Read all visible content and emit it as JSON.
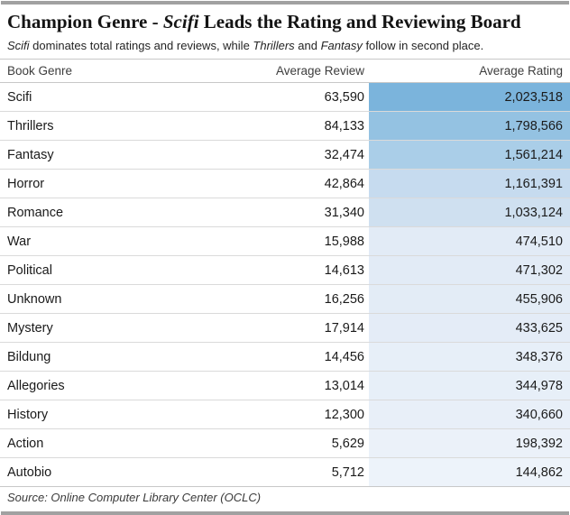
{
  "accent_bar_color": "#a1a1a1",
  "title": {
    "parts": [
      {
        "text": "Champion Genre - ",
        "italic": false
      },
      {
        "text": "Scifi",
        "italic": true
      },
      {
        "text": " Leads the Rating and Reviewing Board",
        "italic": false
      }
    ]
  },
  "subtitle": {
    "parts": [
      {
        "text": "Scifi",
        "italic": true
      },
      {
        "text": " dominates total ratings and reviews, while ",
        "italic": false
      },
      {
        "text": "Thrillers",
        "italic": true
      },
      {
        "text": " and ",
        "italic": false
      },
      {
        "text": "Fantasy",
        "italic": true
      },
      {
        "text": " follow in second place.",
        "italic": false
      }
    ]
  },
  "table": {
    "columns": [
      "Book Genre",
      "Average Review",
      "Average Rating"
    ],
    "rows": [
      {
        "genre": "Scifi",
        "avg_review": "63,590",
        "avg_rating": "2,023,518",
        "rating_bg": "#7bb4dc"
      },
      {
        "genre": "Thrillers",
        "avg_review": "84,133",
        "avg_rating": "1,798,566",
        "rating_bg": "#94c2e2"
      },
      {
        "genre": "Fantasy",
        "avg_review": "32,474",
        "avg_rating": "1,561,214",
        "rating_bg": "#aacee8"
      },
      {
        "genre": "Horror",
        "avg_review": "42,864",
        "avg_rating": "1,161,391",
        "rating_bg": "#c6dbef"
      },
      {
        "genre": "Romance",
        "avg_review": "31,340",
        "avg_rating": "1,033,124",
        "rating_bg": "#cfe0f0"
      },
      {
        "genre": "War",
        "avg_review": "15,988",
        "avg_rating": "474,510",
        "rating_bg": "#e2ebf6"
      },
      {
        "genre": "Political",
        "avg_review": "14,613",
        "avg_rating": "471,302",
        "rating_bg": "#e2ebf6"
      },
      {
        "genre": "Unknown",
        "avg_review": "16,256",
        "avg_rating": "455,906",
        "rating_bg": "#e3ecf6"
      },
      {
        "genre": "Mystery",
        "avg_review": "17,914",
        "avg_rating": "433,625",
        "rating_bg": "#e4ecf7"
      },
      {
        "genre": "Bildung",
        "avg_review": "14,456",
        "avg_rating": "348,376",
        "rating_bg": "#e7eff8"
      },
      {
        "genre": "Allegories",
        "avg_review": "13,014",
        "avg_rating": "344,978",
        "rating_bg": "#e7eff8"
      },
      {
        "genre": "History",
        "avg_review": "12,300",
        "avg_rating": "340,660",
        "rating_bg": "#e8eff8"
      },
      {
        "genre": "Action",
        "avg_review": "5,629",
        "avg_rating": "198,392",
        "rating_bg": "#ebf1f9"
      },
      {
        "genre": "Autobio",
        "avg_review": "5,712",
        "avg_rating": "144,862",
        "rating_bg": "#edf3fa"
      }
    ]
  },
  "footer": {
    "source": "Source: Online Computer Library Center (OCLC)"
  },
  "chart_data": {
    "type": "table",
    "title": "Champion Genre - Scifi Leads the Rating and Reviewing Board",
    "subtitle": "Scifi dominates total ratings and reviews, while Thrillers and Fantasy follow in second place.",
    "columns": [
      "Book Genre",
      "Average Review",
      "Average Rating"
    ],
    "categories": [
      "Scifi",
      "Thrillers",
      "Fantasy",
      "Horror",
      "Romance",
      "War",
      "Political",
      "Unknown",
      "Mystery",
      "Bildung",
      "Allegories",
      "History",
      "Action",
      "Autobio"
    ],
    "series": [
      {
        "name": "Average Review",
        "values": [
          63590,
          84133,
          32474,
          42864,
          31340,
          15988,
          14613,
          16256,
          17914,
          14456,
          13014,
          12300,
          5629,
          5712
        ]
      },
      {
        "name": "Average Rating",
        "values": [
          2023518,
          1798566,
          1561214,
          1161391,
          1033124,
          474510,
          471302,
          455906,
          433625,
          348376,
          344978,
          340660,
          198392,
          144862
        ]
      }
    ],
    "heatmap_column": "Average Rating",
    "heatmap_min_color": "#edf3fa",
    "heatmap_max_color": "#7bb4dc",
    "source": "Source: Online Computer Library Center (OCLC)"
  }
}
